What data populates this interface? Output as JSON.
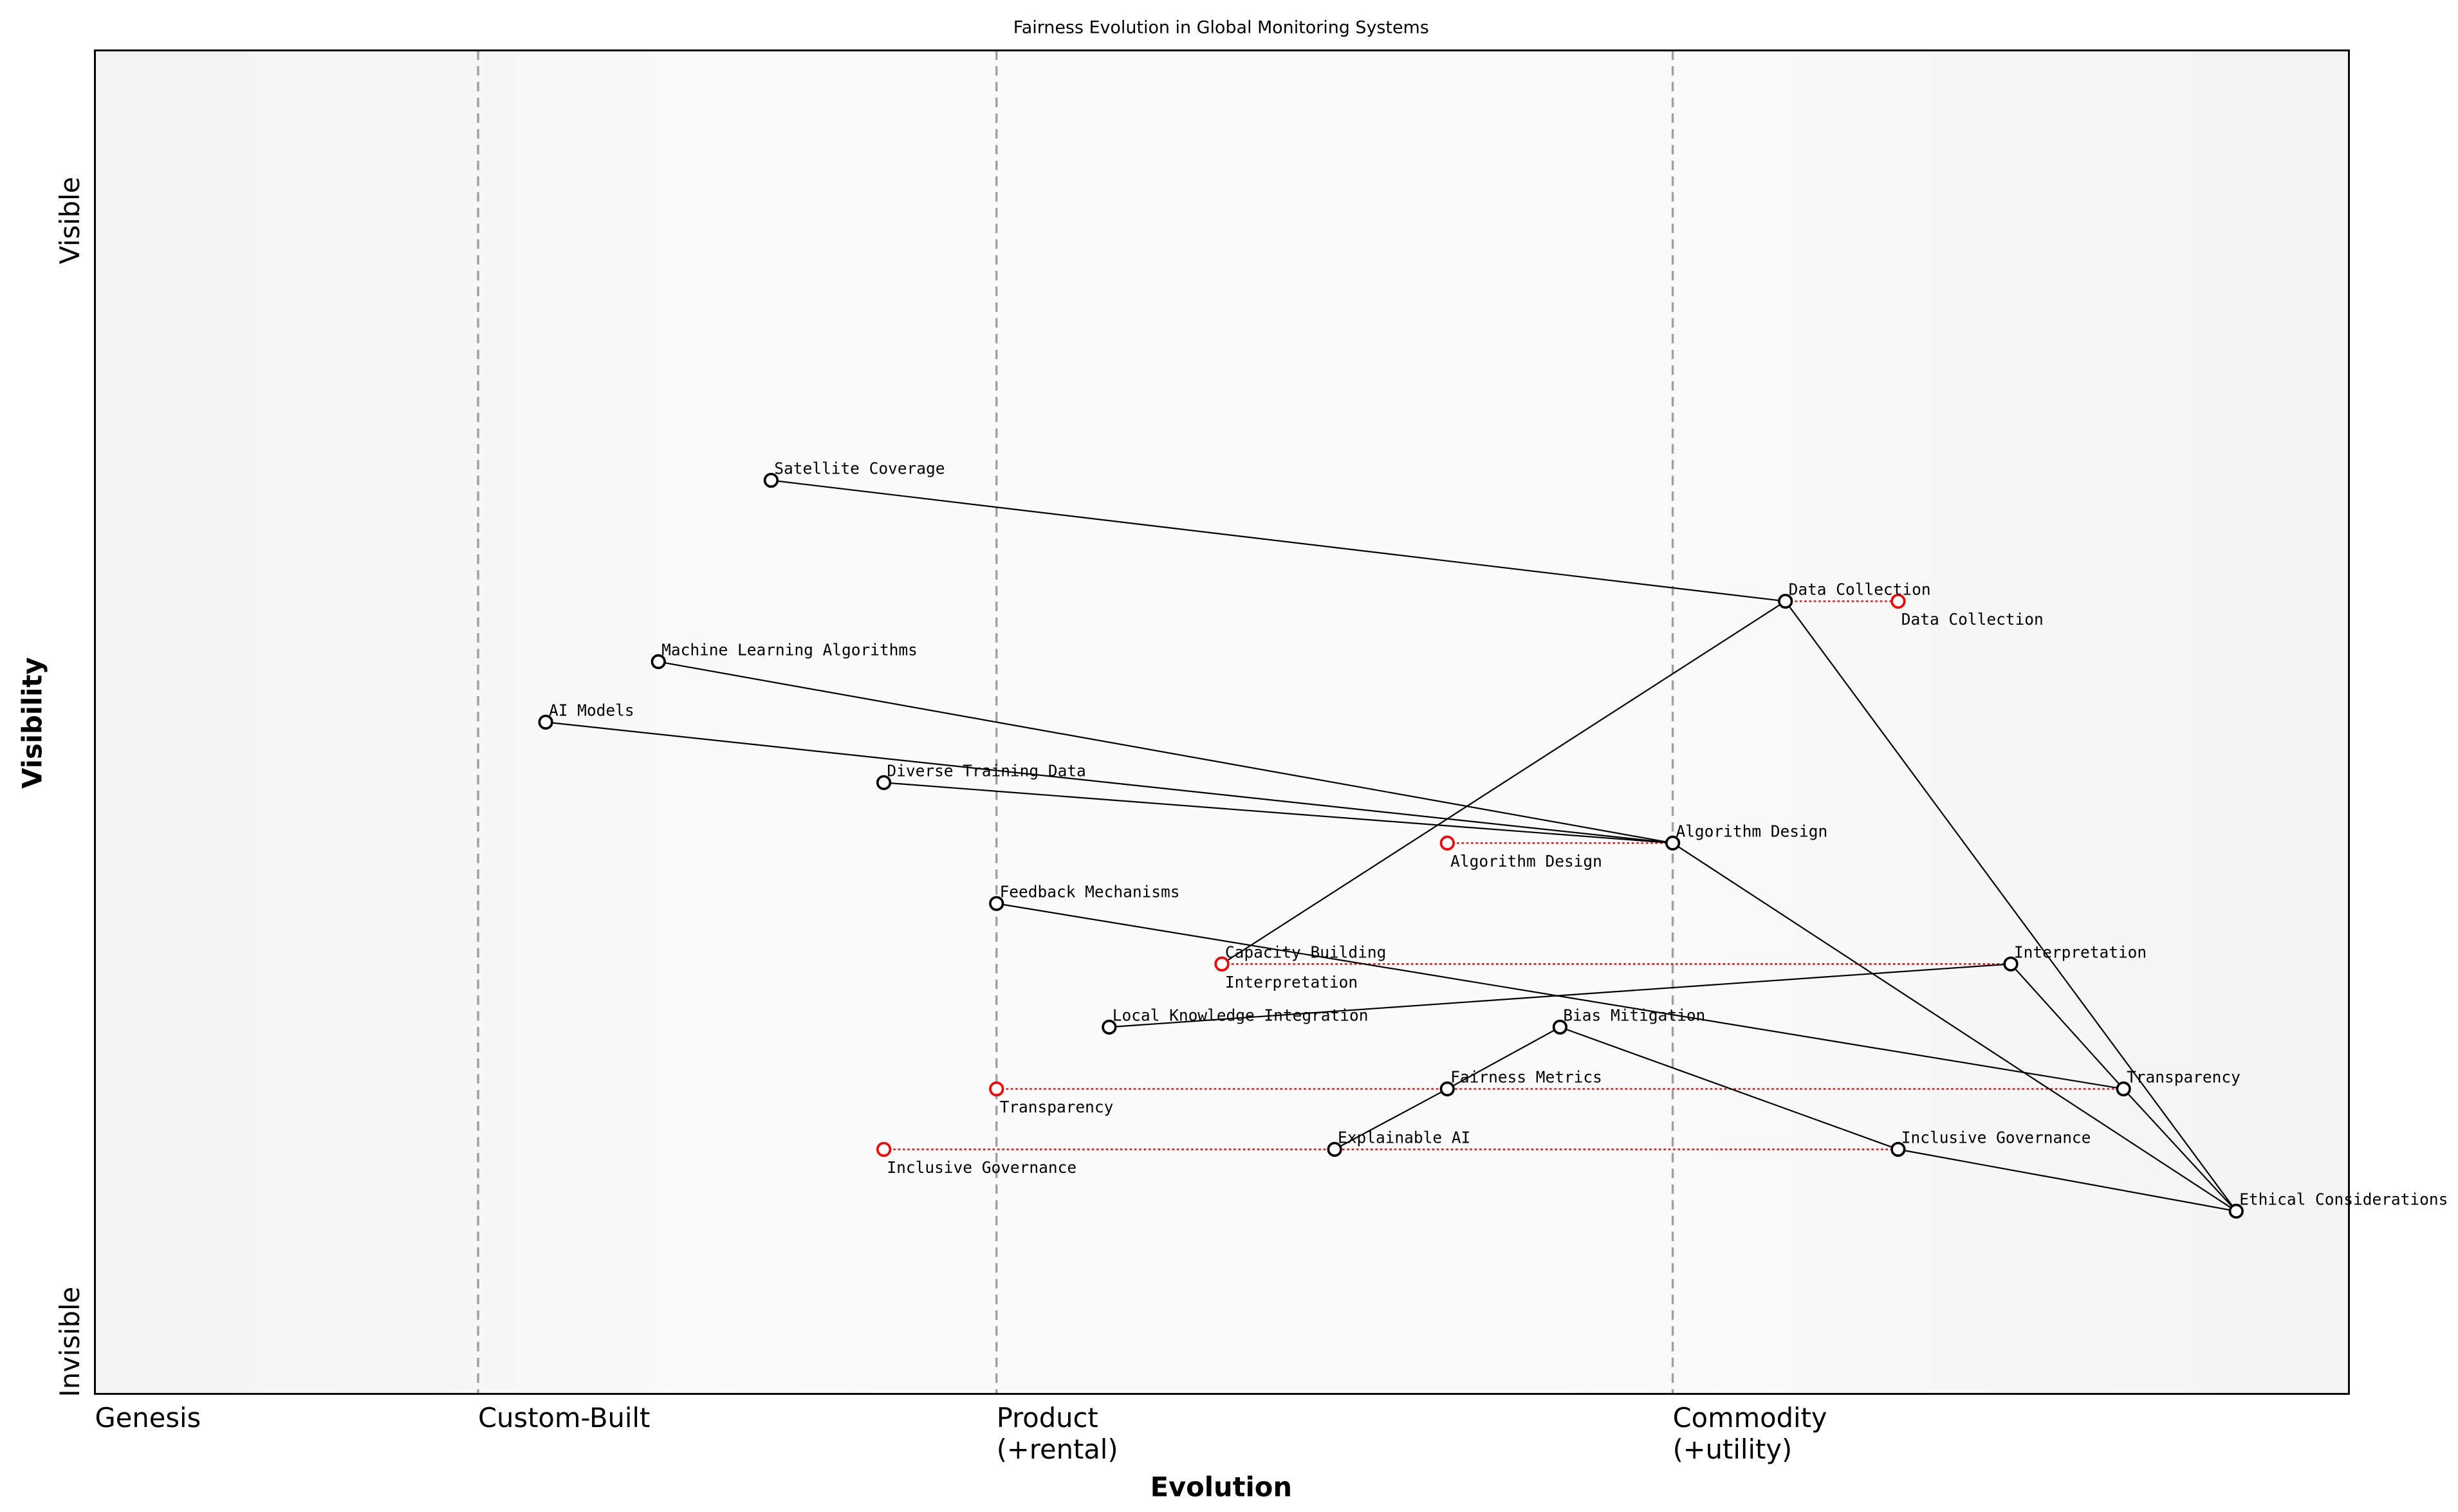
{
  "title": "Fairness Evolution in Global Monitoring Systems",
  "chart_data": {
    "type": "wardley-map",
    "title": "Fairness Evolution in Global Monitoring Systems",
    "xlabel": "Evolution",
    "ylabel": "Visibility",
    "y_top_label": "Visible",
    "y_bottom_label": "Invisible",
    "xlim": [
      0,
      1
    ],
    "ylim": [
      0,
      1
    ],
    "stages": [
      {
        "at": 0.0,
        "label": "Genesis",
        "label2": ""
      },
      {
        "at": 0.17,
        "label": "Custom-Built",
        "label2": ""
      },
      {
        "at": 0.4,
        "label": "Product",
        "label2": "(+rental)"
      },
      {
        "at": 0.7,
        "label": "Commodity",
        "label2": "(+utility)"
      }
    ],
    "components": [
      {
        "name": "Satellite Coverage",
        "evolution": 0.3,
        "visibility": 0.68
      },
      {
        "name": "Data Collection",
        "evolution": 0.75,
        "visibility": 0.59
      },
      {
        "name": "Machine Learning Algorithms",
        "evolution": 0.25,
        "visibility": 0.545
      },
      {
        "name": "AI Models",
        "evolution": 0.2,
        "visibility": 0.5
      },
      {
        "name": "Diverse Training Data",
        "evolution": 0.35,
        "visibility": 0.455
      },
      {
        "name": "Algorithm Design",
        "evolution": 0.7,
        "visibility": 0.41
      },
      {
        "name": "Feedback Mechanisms",
        "evolution": 0.4,
        "visibility": 0.365
      },
      {
        "name": "Capacity Building",
        "evolution": 0.5,
        "visibility": 0.32
      },
      {
        "name": "Interpretation",
        "evolution": 0.85,
        "visibility": 0.32
      },
      {
        "name": "Local Knowledge Integration",
        "evolution": 0.45,
        "visibility": 0.273
      },
      {
        "name": "Bias Mitigation",
        "evolution": 0.65,
        "visibility": 0.273
      },
      {
        "name": "Fairness Metrics",
        "evolution": 0.6,
        "visibility": 0.227
      },
      {
        "name": "Transparency",
        "evolution": 0.9,
        "visibility": 0.227
      },
      {
        "name": "Explainable AI",
        "evolution": 0.55,
        "visibility": 0.182
      },
      {
        "name": "Inclusive Governance",
        "evolution": 0.8,
        "visibility": 0.182
      },
      {
        "name": "Ethical Considerations",
        "evolution": 0.95,
        "visibility": 0.136
      }
    ],
    "links": [
      [
        "Satellite Coverage",
        "Data Collection"
      ],
      [
        "Data Collection",
        "Capacity Building"
      ],
      [
        "Data Collection",
        "Ethical Considerations"
      ],
      [
        "Machine Learning Algorithms",
        "Algorithm Design"
      ],
      [
        "AI Models",
        "Algorithm Design"
      ],
      [
        "Diverse Training Data",
        "Algorithm Design"
      ],
      [
        "Algorithm Design",
        "Ethical Considerations"
      ],
      [
        "Feedback Mechanisms",
        "Transparency"
      ],
      [
        "Local Knowledge Integration",
        "Interpretation"
      ],
      [
        "Interpretation",
        "Transparency"
      ],
      [
        "Transparency",
        "Ethical Considerations"
      ],
      [
        "Bias Mitigation",
        "Fairness Metrics"
      ],
      [
        "Fairness Metrics",
        "Explainable AI"
      ],
      [
        "Bias Mitigation",
        "Inclusive Governance"
      ],
      [
        "Inclusive Governance",
        "Ethical Considerations"
      ]
    ],
    "evolutions": [
      {
        "name": "Data Collection",
        "from": 0.75,
        "to": 0.8,
        "visibility": 0.59
      },
      {
        "name": "Algorithm Design",
        "from": 0.6,
        "to": 0.7,
        "visibility": 0.41
      },
      {
        "name": "Interpretation",
        "from": 0.5,
        "to": 0.85,
        "visibility": 0.32
      },
      {
        "name": "Transparency",
        "from": 0.4,
        "to": 0.9,
        "visibility": 0.227
      },
      {
        "name": "Inclusive Governance",
        "from": 0.35,
        "to": 0.8,
        "visibility": 0.182
      }
    ],
    "colors": {
      "component": "#000000",
      "evolution": "#ff0000",
      "stage_line": "#a0a0a0"
    }
  }
}
